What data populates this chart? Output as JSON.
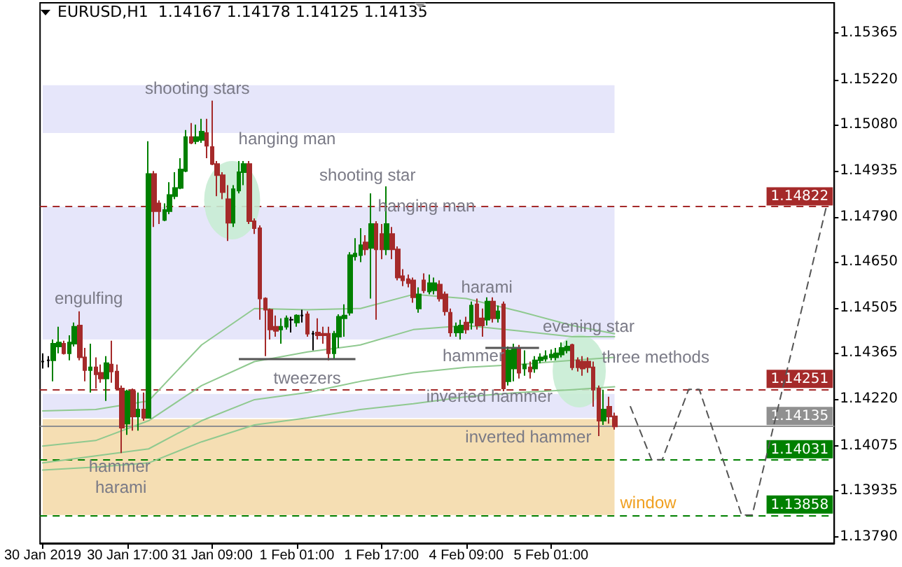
{
  "chart_data": {
    "type": "candlestick",
    "title": "EURUSD,H1  1.14167 1.14178 1.14125 1.14135",
    "categories": [
      "30 Jan 2019",
      null,
      null,
      null,
      null,
      null,
      null,
      null,
      null,
      null,
      null,
      null,
      null,
      null,
      null,
      null,
      "30 Jan 17:00",
      null,
      null,
      null,
      null,
      null,
      null,
      null,
      null,
      null,
      null,
      null,
      null,
      null,
      null,
      null,
      "31 Jan 09:00",
      null,
      null,
      null,
      null,
      null,
      null,
      null,
      null,
      null,
      null,
      null,
      null,
      null,
      null,
      null,
      "1 Feb 01:00",
      null,
      null,
      null,
      null,
      null,
      null,
      null,
      null,
      null,
      null,
      null,
      null,
      null,
      null,
      null,
      "1 Feb 17:00",
      null,
      null,
      null,
      null,
      null,
      null,
      null,
      null,
      null,
      null,
      null,
      null,
      null,
      null,
      null,
      "4 Feb 09:00",
      null,
      null,
      null,
      null,
      null,
      null,
      null,
      null,
      null,
      null,
      null,
      null,
      null,
      null,
      null,
      "5 Feb 01:00",
      null,
      null,
      null,
      null,
      null,
      null,
      null,
      null,
      null,
      null,
      null,
      null,
      null,
      null,
      null,
      null,
      null,
      null,
      null,
      null,
      null,
      null,
      null,
      null,
      null,
      null,
      null,
      null,
      null,
      null,
      null,
      null,
      null,
      null,
      null,
      null,
      null,
      null,
      null,
      null,
      null,
      null,
      null,
      null,
      null,
      null,
      null,
      null,
      null,
      null,
      null,
      null,
      null
    ],
    "ohlc": [
      [
        1.14338,
        1.14364,
        1.14316,
        1.14338
      ],
      [
        1.14342,
        1.14355,
        1.1432,
        1.14342
      ],
      [
        1.14342,
        1.14407,
        1.14276,
        1.14394
      ],
      [
        1.14385,
        1.14447,
        1.14364,
        1.14398
      ],
      [
        1.14394,
        1.14403,
        1.1436,
        1.14364
      ],
      [
        1.14364,
        1.1442,
        1.14342,
        1.14398
      ],
      [
        1.14394,
        1.1446,
        1.14385,
        1.14447
      ],
      [
        1.14451,
        1.14495,
        1.14342,
        1.14351
      ],
      [
        1.14351,
        1.14381,
        1.14276,
        1.14311
      ],
      [
        1.14311,
        1.14394,
        1.14241,
        1.1432
      ],
      [
        1.1432,
        1.14351,
        1.14254,
        1.14298
      ],
      [
        1.14303,
        1.14329,
        1.14272,
        1.14285
      ],
      [
        1.14285,
        1.14355,
        1.14215,
        1.14333
      ],
      [
        1.14329,
        1.14403,
        1.14272,
        1.14307
      ],
      [
        1.14307,
        1.14329,
        1.1425,
        1.14254
      ],
      [
        1.14254,
        1.14263,
        1.14052,
        1.14131
      ],
      [
        1.14144,
        1.1425,
        1.14109,
        1.14245
      ],
      [
        1.14245,
        1.14254,
        1.14122,
        1.14166
      ],
      [
        1.14166,
        1.14241,
        1.14122,
        1.14188
      ],
      [
        1.14188,
        1.14241,
        1.14153,
        1.14162
      ],
      [
        1.14162,
        1.15027,
        1.14162,
        1.14925
      ],
      [
        1.14925,
        1.14934,
        1.14759,
        1.14808
      ],
      [
        1.14833,
        1.14842,
        1.14768,
        1.14808
      ],
      [
        1.14781,
        1.14833,
        1.14777,
        1.14812
      ],
      [
        1.14808,
        1.14899,
        1.14799,
        1.14859
      ],
      [
        1.14855,
        1.1493,
        1.14846,
        1.14881
      ],
      [
        1.14881,
        1.14974,
        1.14877,
        1.14939
      ],
      [
        1.14934,
        1.15062,
        1.1493,
        1.1504
      ],
      [
        1.1504,
        1.15084,
        1.15018,
        1.15022
      ],
      [
        1.15027,
        1.15079,
        1.15018,
        1.1504
      ],
      [
        1.15031,
        1.15097,
        1.15022,
        1.15057
      ],
      [
        1.15053,
        1.15097,
        1.14974,
        1.15013
      ],
      [
        1.15009,
        1.15154,
        1.14952,
        1.14956
      ],
      [
        1.14956,
        1.14965,
        1.14855,
        1.14921
      ],
      [
        1.14921,
        1.1493,
        1.14846,
        1.14868
      ],
      [
        1.14846,
        1.1489,
        1.14715,
        1.14772
      ],
      [
        1.14772,
        1.1489,
        1.14759,
        1.14877
      ],
      [
        1.14873,
        1.14965,
        1.14864,
        1.1493
      ],
      [
        1.1493,
        1.14965,
        1.1489,
        1.14956
      ],
      [
        1.14956,
        1.14965,
        1.14768,
        1.14777
      ],
      [
        1.14777,
        1.14786,
        1.14737,
        1.14755
      ],
      [
        1.14755,
        1.14764,
        1.14469,
        1.14535
      ],
      [
        1.14535,
        1.14539,
        1.14355,
        1.145
      ],
      [
        1.145,
        1.14504,
        1.14407,
        1.14438
      ],
      [
        1.14447,
        1.14482,
        1.14416,
        1.14434
      ],
      [
        1.14438,
        1.14473,
        1.14394,
        1.14447
      ],
      [
        1.14447,
        1.14482,
        1.14438,
        1.14473
      ],
      [
        1.14469,
        1.14478,
        1.14429,
        1.14469
      ],
      [
        1.1446,
        1.14486,
        1.14447,
        1.14482
      ],
      [
        1.14482,
        1.145,
        1.1446,
        1.14482
      ],
      [
        1.14486,
        1.14495,
        1.14416,
        1.14425
      ],
      [
        1.14425,
        1.14434,
        1.14373,
        1.14425
      ],
      [
        1.14429,
        1.14473,
        1.14407,
        1.1442
      ],
      [
        1.14425,
        1.14447,
        1.14394,
        1.1442
      ],
      [
        1.14425,
        1.14447,
        1.14342,
        1.14364
      ],
      [
        1.14364,
        1.14434,
        1.14347,
        1.14425
      ],
      [
        1.14416,
        1.14486,
        1.14381,
        1.14478
      ],
      [
        1.14473,
        1.14517,
        1.14416,
        1.14482
      ],
      [
        1.14491,
        1.1468,
        1.14482,
        1.14671
      ],
      [
        1.14667,
        1.14724,
        1.14654,
        1.14676
      ],
      [
        1.14671,
        1.14755,
        1.14649,
        1.14702
      ],
      [
        1.14711,
        1.14733,
        1.14671,
        1.14689
      ],
      [
        1.14693,
        1.14864,
        1.14535,
        1.14768
      ],
      [
        1.14768,
        1.14777,
        1.14469,
        1.14689
      ],
      [
        1.14737,
        1.14768,
        1.14658,
        1.14689
      ],
      [
        1.14689,
        1.14886,
        1.14671,
        1.14768
      ],
      [
        1.14737,
        1.14759,
        1.14658,
        1.14689
      ],
      [
        1.14689,
        1.14698,
        1.14592,
        1.14601
      ],
      [
        1.14605,
        1.14627,
        1.14574,
        1.14592
      ],
      [
        1.14596,
        1.1461,
        1.1457,
        1.14583
      ],
      [
        1.14592,
        1.14601,
        1.14522,
        1.14539
      ],
      [
        1.14504,
        1.1457,
        1.14491,
        1.14548
      ],
      [
        1.14592,
        1.14614,
        1.14552,
        1.14561
      ],
      [
        1.14557,
        1.1461,
        1.14548,
        1.14583
      ],
      [
        1.14561,
        1.14601,
        1.14548,
        1.14583
      ],
      [
        1.14579,
        1.14592,
        1.14526,
        1.14535
      ],
      [
        1.14548,
        1.14557,
        1.14482,
        1.14495
      ],
      [
        1.14491,
        1.14504,
        1.14416,
        1.14429
      ],
      [
        1.14429,
        1.1446,
        1.14416,
        1.14447
      ],
      [
        1.14429,
        1.14469,
        1.14407,
        1.14451
      ],
      [
        1.1446,
        1.14478,
        1.14425,
        1.14438
      ],
      [
        1.1446,
        1.14526,
        1.14438,
        1.14513
      ],
      [
        1.14517,
        1.14535,
        1.14438,
        1.14451
      ],
      [
        1.14473,
        1.14504,
        1.14416,
        1.14451
      ],
      [
        1.14469,
        1.14539,
        1.14451,
        1.14526
      ],
      [
        1.14526,
        1.14539,
        1.1446,
        1.14473
      ],
      [
        1.14473,
        1.14513,
        1.1446,
        1.14495
      ],
      [
        1.14517,
        1.14526,
        1.14245,
        1.14254
      ],
      [
        1.14276,
        1.14385,
        1.14263,
        1.14373
      ],
      [
        1.14316,
        1.14394,
        1.14276,
        1.14381
      ],
      [
        1.14381,
        1.1439,
        1.14285,
        1.14303
      ],
      [
        1.14316,
        1.14373,
        1.14294,
        1.14329
      ],
      [
        1.1432,
        1.14338,
        1.14285,
        1.14307
      ],
      [
        1.14316,
        1.14355,
        1.14303,
        1.14342
      ],
      [
        1.14342,
        1.14364,
        1.14333,
        1.14351
      ],
      [
        1.14347,
        1.14373,
        1.14338,
        1.14355
      ],
      [
        1.14351,
        1.14376,
        1.14342,
        1.1436
      ],
      [
        1.14351,
        1.14381,
        1.14342,
        1.14364
      ],
      [
        1.1436,
        1.14398,
        1.14351,
        1.14381
      ],
      [
        1.14373,
        1.14403,
        1.14364,
        1.14385
      ],
      [
        1.1439,
        1.14394,
        1.14311,
        1.1432
      ],
      [
        1.14342,
        1.14351,
        1.14307,
        1.1432
      ],
      [
        1.14338,
        1.14355,
        1.14294,
        1.14316
      ],
      [
        1.14338,
        1.14351,
        1.14303,
        1.1432
      ],
      [
        1.1432,
        1.14338,
        1.14197,
        1.1425
      ],
      [
        1.14254,
        1.14263,
        1.14105,
        1.14153
      ],
      [
        1.14153,
        1.1425,
        1.1414,
        1.14188
      ],
      [
        1.14197,
        1.14228,
        1.14144,
        1.14166
      ],
      [
        1.14167,
        1.14178,
        1.14125,
        1.14135
      ],
      null,
      null,
      null,
      null,
      null,
      null,
      null,
      null,
      null,
      null,
      null,
      null,
      null,
      null,
      null,
      null,
      null,
      null,
      null,
      null,
      null,
      null,
      null,
      null,
      null,
      null,
      null,
      null,
      null,
      null,
      null,
      null,
      null,
      null,
      null,
      null,
      null,
      null,
      null,
      null,
      null
    ],
    "colors": [
      "#000000",
      "#000000",
      "#008000",
      "#008000",
      "#a52a2a",
      "#008000",
      "#008000",
      "#a52a2a",
      "#a52a2a",
      "#008000",
      "#a52a2a",
      "#a52a2a",
      "#008000",
      "#a52a2a",
      "#a52a2a",
      "#a52a2a",
      "#008000",
      "#a52a2a",
      "#008000",
      "#a52a2a",
      "#008000",
      "#a52a2a",
      "#a52a2a",
      "#008000",
      "#008000",
      "#008000",
      "#008000",
      "#008000",
      "#a52a2a",
      "#008000",
      "#008000",
      "#a52a2a",
      "#a52a2a",
      "#a52a2a",
      "#a52a2a",
      "#a52a2a",
      "#008000",
      "#008000",
      "#008000",
      "#a52a2a",
      "#a52a2a",
      "#a52a2a",
      "#a52a2a",
      "#a52a2a",
      "#a52a2a",
      "#008000",
      "#008000",
      "#000000",
      "#008000",
      "#000000",
      "#a52a2a",
      "#000000",
      "#a52a2a",
      "#a52a2a",
      "#a52a2a",
      "#008000",
      "#008000",
      "#008000",
      "#008000",
      "#008000",
      "#008000",
      "#a52a2a",
      "#008000",
      "#a52a2a",
      "#a52a2a",
      "#008000",
      "#a52a2a",
      "#a52a2a",
      "#a52a2a",
      "#a52a2a",
      "#a52a2a",
      "#008000",
      "#a52a2a",
      "#008000",
      "#008000",
      "#a52a2a",
      "#a52a2a",
      "#a52a2a",
      "#008000",
      "#008000",
      "#a52a2a",
      "#008000",
      "#a52a2a",
      "#a52a2a",
      "#008000",
      "#a52a2a",
      "#008000",
      "#a52a2a",
      "#008000",
      "#008000",
      "#a52a2a",
      "#008000",
      "#a52a2a",
      "#008000",
      "#008000",
      "#008000",
      "#008000",
      "#008000",
      "#008000",
      "#008000",
      "#a52a2a",
      "#a52a2a",
      "#a52a2a",
      "#a52a2a",
      "#a52a2a",
      "#a52a2a",
      "#008000",
      "#a52a2a",
      "#a52a2a",
      null,
      null,
      null,
      null,
      null,
      null,
      null,
      null,
      null,
      null,
      null,
      null,
      null,
      null,
      null,
      null,
      null,
      null,
      null,
      null,
      null,
      null,
      null,
      null,
      null,
      null,
      null,
      null,
      null,
      null,
      null,
      null,
      null,
      null,
      null,
      null,
      null,
      null,
      null,
      null,
      null
    ],
    "series": [
      {
        "type": "line",
        "color": "#8fc98f",
        "values": [
          1.14184,
          null,
          null,
          null,
          null,
          null,
          null,
          null,
          null,
          null,
          1.14188,
          null,
          null,
          null,
          null,
          null,
          null,
          null,
          null,
          null,
          1.14215,
          null,
          null,
          null,
          null,
          null,
          null,
          null,
          null,
          null,
          1.1439,
          null,
          null,
          null,
          null,
          null,
          null,
          null,
          null,
          null,
          1.14504,
          null,
          null,
          null,
          null,
          null,
          null,
          null,
          null,
          null,
          1.145,
          null,
          null,
          null,
          null,
          null,
          null,
          null,
          null,
          null,
          1.14504,
          null,
          null,
          null,
          null,
          null,
          null,
          null,
          null,
          null,
          1.14548,
          null,
          null,
          null,
          null,
          null,
          null,
          null,
          null,
          null,
          1.14535,
          null,
          null,
          null,
          null,
          null,
          null,
          null,
          null,
          null,
          1.14495,
          null,
          null,
          null,
          null,
          null,
          null,
          null,
          null,
          null,
          1.14451,
          null,
          null,
          null,
          null,
          null,
          null,
          null,
          1.14425,
          null,
          null,
          null,
          null,
          null,
          null,
          null,
          null,
          null,
          null,
          null,
          null,
          null,
          null,
          null,
          null,
          null,
          null,
          null,
          null,
          null,
          null,
          null,
          null,
          null,
          null,
          null,
          null,
          null,
          null,
          null,
          null,
          null,
          null,
          null,
          null,
          null,
          null,
          null,
          null,
          null
        ]
      },
      {
        "type": "line",
        "color": "#8fc98f",
        "values": [
          1.14074,
          null,
          null,
          null,
          null,
          null,
          null,
          null,
          null,
          null,
          1.14091,
          null,
          null,
          null,
          null,
          null,
          null,
          null,
          null,
          null,
          1.14153,
          null,
          null,
          null,
          null,
          null,
          null,
          null,
          null,
          null,
          1.14263,
          null,
          null,
          null,
          null,
          null,
          null,
          null,
          null,
          null,
          1.14338,
          null,
          null,
          null,
          null,
          null,
          null,
          null,
          null,
          null,
          1.14368,
          null,
          null,
          null,
          null,
          null,
          null,
          null,
          null,
          null,
          1.1439,
          null,
          null,
          null,
          null,
          null,
          null,
          null,
          null,
          null,
          1.14438,
          null,
          null,
          null,
          null,
          null,
          null,
          null,
          null,
          null,
          1.14451,
          null,
          null,
          null,
          null,
          null,
          null,
          null,
          null,
          null,
          1.14434,
          null,
          null,
          null,
          null,
          null,
          null,
          null,
          null,
          null,
          1.14416,
          null,
          null,
          null,
          null,
          null,
          null,
          null,
          1.14416,
          null,
          null,
          null,
          null,
          null,
          null,
          null,
          null,
          null,
          null,
          null,
          null,
          null,
          null,
          null,
          null,
          null,
          null,
          null,
          null,
          null,
          null,
          null,
          null,
          null,
          null,
          null,
          null,
          null,
          null,
          null,
          null,
          null,
          null,
          null,
          null,
          null,
          null,
          null,
          null,
          null
        ]
      },
      {
        "type": "line",
        "color": "#8fc98f",
        "values": [
          1.14021,
          null,
          null,
          null,
          null,
          null,
          null,
          null,
          null,
          null,
          1.14043,
          null,
          null,
          null,
          null,
          null,
          null,
          null,
          null,
          null,
          1.14065,
          null,
          null,
          null,
          null,
          null,
          null,
          null,
          null,
          null,
          1.14153,
          null,
          null,
          null,
          null,
          null,
          null,
          null,
          null,
          null,
          1.14219,
          null,
          null,
          null,
          null,
          null,
          null,
          null,
          null,
          null,
          1.14241,
          null,
          null,
          null,
          null,
          null,
          null,
          null,
          null,
          null,
          1.14276,
          null,
          null,
          null,
          null,
          null,
          null,
          null,
          null,
          null,
          1.14303,
          null,
          null,
          null,
          null,
          null,
          null,
          null,
          null,
          null,
          1.1432,
          null,
          null,
          null,
          null,
          null,
          null,
          null,
          null,
          null,
          1.14329,
          null,
          null,
          null,
          null,
          null,
          null,
          null,
          null,
          null,
          1.14342,
          null,
          null,
          null,
          null,
          null,
          null,
          null,
          1.14351,
          null,
          null,
          null,
          null,
          null,
          null,
          null,
          null,
          null,
          null,
          null,
          null,
          null,
          null,
          null,
          null,
          null,
          null,
          null,
          null,
          null,
          null,
          null,
          null,
          null,
          null,
          null,
          null,
          null,
          null,
          null,
          null,
          null,
          null,
          null,
          null,
          null,
          null,
          null,
          null,
          null
        ]
      },
      {
        "type": "line",
        "color": "#8fc98f",
        "values": [
          1.13999,
          null,
          null,
          null,
          null,
          null,
          null,
          null,
          null,
          null,
          1.14008,
          null,
          null,
          null,
          null,
          null,
          null,
          null,
          null,
          null,
          1.14021,
          null,
          null,
          null,
          null,
          null,
          null,
          null,
          null,
          null,
          1.14087,
          null,
          null,
          null,
          null,
          null,
          null,
          null,
          null,
          null,
          1.1414,
          null,
          null,
          null,
          null,
          null,
          null,
          null,
          null,
          null,
          1.14162,
          null,
          null,
          null,
          null,
          null,
          null,
          null,
          null,
          null,
          1.14188,
          null,
          null,
          null,
          null,
          null,
          null,
          null,
          null,
          null,
          1.14206,
          null,
          null,
          null,
          null,
          null,
          null,
          null,
          null,
          null,
          1.14228,
          null,
          null,
          null,
          null,
          null,
          null,
          null,
          null,
          null,
          1.14241,
          null,
          null,
          null,
          null,
          null,
          null,
          null,
          null,
          null,
          1.1425,
          null,
          null,
          null,
          null,
          null,
          null,
          null,
          1.14259,
          null,
          null,
          null,
          null,
          null,
          null,
          null,
          null,
          null,
          null,
          null,
          null,
          null,
          null,
          null,
          null,
          null,
          null,
          null,
          null,
          null,
          null,
          null,
          null,
          null,
          null,
          null,
          null,
          null,
          null,
          null,
          null,
          null,
          null,
          null,
          null,
          null,
          null,
          null,
          null,
          null
        ]
      },
      {
        "type": "line",
        "color": "#555555",
        "line_style": "dashed",
        "values": [
          null,
          null,
          null,
          null,
          null,
          null,
          null,
          null,
          null,
          null,
          null,
          null,
          null,
          null,
          null,
          null,
          null,
          null,
          null,
          null,
          null,
          null,
          null,
          null,
          null,
          null,
          null,
          null,
          null,
          null,
          null,
          null,
          null,
          null,
          null,
          null,
          null,
          null,
          null,
          null,
          null,
          null,
          null,
          null,
          null,
          null,
          null,
          null,
          null,
          null,
          null,
          null,
          null,
          null,
          null,
          null,
          null,
          null,
          null,
          null,
          null,
          null,
          null,
          null,
          null,
          null,
          null,
          null,
          null,
          null,
          null,
          null,
          null,
          null,
          null,
          null,
          null,
          null,
          null,
          null,
          null,
          null,
          null,
          null,
          null,
          null,
          null,
          null,
          null,
          null,
          null,
          null,
          null,
          null,
          null,
          null,
          null,
          null,
          null,
          null,
          null,
          null,
          null,
          null,
          null,
          null,
          null,
          null,
          null,
          null,
          null,
          1.14197,
          null,
          null,
          null,
          1.14031,
          null,
          1.14031,
          null,
          null,
          null,
          null,
          1.14251,
          null,
          1.14251,
          null,
          null,
          null,
          null,
          null,
          null,
          null,
          1.13858,
          null,
          1.13858,
          null,
          null,
          null,
          null,
          null,
          null,
          null,
          null,
          null,
          null,
          null,
          null,
          null,
          1.14822,
          null
        ]
      }
    ],
    "marker": "none",
    "ylim": [
      1.1377,
      1.1546
    ],
    "yticks": [
      {
        "value": 1.1379,
        "label": "1.13790"
      },
      {
        "value": 1.13935,
        "label": "1.13935"
      },
      {
        "value": 1.14075,
        "label": "1.14075"
      },
      {
        "value": 1.1422,
        "label": "1.14220"
      },
      {
        "value": 1.14365,
        "label": "1.14365"
      },
      {
        "value": 1.14505,
        "label": "1.14505"
      },
      {
        "value": 1.1465,
        "label": "1.14650"
      },
      {
        "value": 1.1479,
        "label": "1.14790"
      },
      {
        "value": 1.14935,
        "label": "1.14935"
      },
      {
        "value": 1.1508,
        "label": "1.15080"
      },
      {
        "value": 1.1522,
        "label": "1.15220"
      },
      {
        "value": 1.15365,
        "label": "1.15365"
      }
    ],
    "ref_lines": [
      {
        "axis": "y",
        "value": 1.14822,
        "label": "1.14822",
        "color": "#a52a2a",
        "line_style": "dashed"
      },
      {
        "axis": "y",
        "value": 1.14251,
        "label": "1.14251",
        "color": "#a52a2a",
        "line_style": "dashed"
      },
      {
        "axis": "y",
        "value": 1.14135,
        "label": "1.14135",
        "color": "#909090",
        "line_style": "solid"
      },
      {
        "axis": "y",
        "value": 1.14031,
        "label": "1.14031",
        "color": "#008000",
        "line_style": "dashed"
      },
      {
        "axis": "y",
        "value": 1.13858,
        "label": "1.13858",
        "color": "#008000",
        "line_style": "dashed"
      }
    ],
    "bands": [
      {
        "axis": "y",
        "from": 1.15053,
        "to": 1.15202,
        "color": "#e6e6fa"
      },
      {
        "axis": "y",
        "from": 1.14407,
        "to": 1.14822,
        "color": "#e6e6fa"
      },
      {
        "axis": "y",
        "from": 1.14162,
        "to": 1.14237,
        "color": "#e6e6fa"
      },
      {
        "axis": "y",
        "from": 1.13858,
        "to": 1.14158,
        "color": "#f5deb3",
        "label": "window"
      }
    ],
    "annotations": [
      "shooting stars",
      "hanging man",
      "shooting star",
      "hanging man",
      "engulfing",
      "harami",
      "evening star",
      "three methods",
      "tweezers",
      "hammer",
      "inverted hammer",
      "inverted hammer",
      "hammer",
      "harami"
    ]
  }
}
